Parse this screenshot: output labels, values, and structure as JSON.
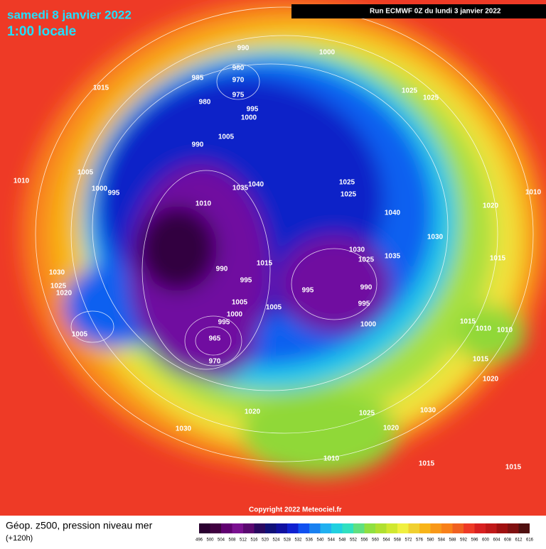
{
  "header": {
    "date": "samedi 8 janvier 2022",
    "time": "1:00 locale",
    "run": "Run ECMWF 0Z du lundi 3 janvier 2022"
  },
  "copyright": "Copyright 2022 Meteociel.fr",
  "footer": {
    "title": "Géop. z500, pression niveau mer",
    "subtitle": "(+120h)"
  },
  "scale_labels": [
    "496",
    "500",
    "504",
    "508",
    "512",
    "516",
    "520",
    "524",
    "528",
    "532",
    "536",
    "540",
    "544",
    "548",
    "552",
    "556",
    "560",
    "564",
    "568",
    "572",
    "576",
    "580",
    "584",
    "588",
    "592",
    "596",
    "600",
    "604",
    "608",
    "612",
    "616"
  ],
  "isobar_labels": [
    "990",
    "980",
    "970",
    "975",
    "985",
    "980",
    "995",
    "1000",
    "1000",
    "1025",
    "1025",
    "1005",
    "990",
    "1035",
    "1040",
    "1025",
    "1025",
    "1010",
    "1040",
    "1015",
    "1010",
    "1005",
    "1000",
    "995",
    "1030",
    "1025",
    "1020",
    "1005",
    "990",
    "995",
    "1005",
    "1005",
    "1000",
    "995",
    "965",
    "970",
    "1030",
    "1025",
    "1030",
    "1035",
    "995",
    "990",
    "995",
    "1000",
    "1020",
    "1030",
    "1020",
    "1015",
    "1010",
    "1010",
    "1015",
    "1020",
    "1025",
    "1030",
    "1020",
    "1015",
    "1015",
    "1010",
    "1015",
    "1015",
    "1010"
  ]
}
